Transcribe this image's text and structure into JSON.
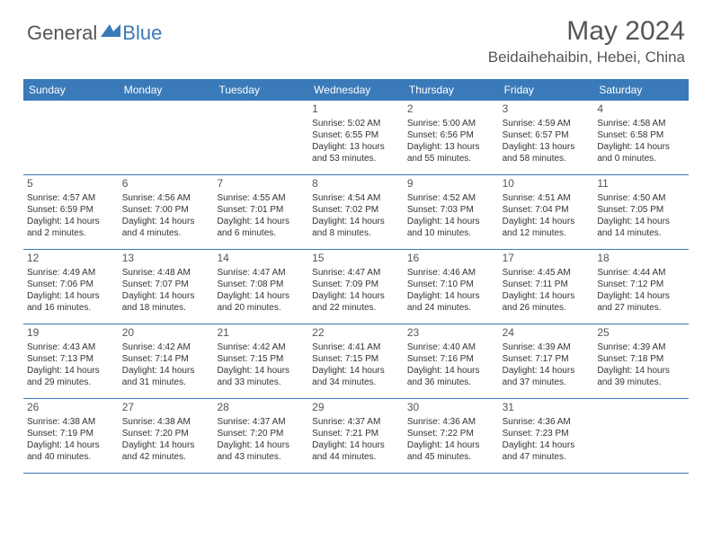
{
  "logo": {
    "text1": "General",
    "text2": "Blue"
  },
  "title": "May 2024",
  "location": "Beidaihehaibin, Hebei, China",
  "colors": {
    "header_bg": "#3a7ab8",
    "header_text": "#ffffff",
    "text": "#333333",
    "title_color": "#555555"
  },
  "day_names": [
    "Sunday",
    "Monday",
    "Tuesday",
    "Wednesday",
    "Thursday",
    "Friday",
    "Saturday"
  ],
  "weeks": [
    [
      null,
      null,
      null,
      {
        "n": "1",
        "sr": "Sunrise: 5:02 AM",
        "ss": "Sunset: 6:55 PM",
        "dl1": "Daylight: 13 hours",
        "dl2": "and 53 minutes."
      },
      {
        "n": "2",
        "sr": "Sunrise: 5:00 AM",
        "ss": "Sunset: 6:56 PM",
        "dl1": "Daylight: 13 hours",
        "dl2": "and 55 minutes."
      },
      {
        "n": "3",
        "sr": "Sunrise: 4:59 AM",
        "ss": "Sunset: 6:57 PM",
        "dl1": "Daylight: 13 hours",
        "dl2": "and 58 minutes."
      },
      {
        "n": "4",
        "sr": "Sunrise: 4:58 AM",
        "ss": "Sunset: 6:58 PM",
        "dl1": "Daylight: 14 hours",
        "dl2": "and 0 minutes."
      }
    ],
    [
      {
        "n": "5",
        "sr": "Sunrise: 4:57 AM",
        "ss": "Sunset: 6:59 PM",
        "dl1": "Daylight: 14 hours",
        "dl2": "and 2 minutes."
      },
      {
        "n": "6",
        "sr": "Sunrise: 4:56 AM",
        "ss": "Sunset: 7:00 PM",
        "dl1": "Daylight: 14 hours",
        "dl2": "and 4 minutes."
      },
      {
        "n": "7",
        "sr": "Sunrise: 4:55 AM",
        "ss": "Sunset: 7:01 PM",
        "dl1": "Daylight: 14 hours",
        "dl2": "and 6 minutes."
      },
      {
        "n": "8",
        "sr": "Sunrise: 4:54 AM",
        "ss": "Sunset: 7:02 PM",
        "dl1": "Daylight: 14 hours",
        "dl2": "and 8 minutes."
      },
      {
        "n": "9",
        "sr": "Sunrise: 4:52 AM",
        "ss": "Sunset: 7:03 PM",
        "dl1": "Daylight: 14 hours",
        "dl2": "and 10 minutes."
      },
      {
        "n": "10",
        "sr": "Sunrise: 4:51 AM",
        "ss": "Sunset: 7:04 PM",
        "dl1": "Daylight: 14 hours",
        "dl2": "and 12 minutes."
      },
      {
        "n": "11",
        "sr": "Sunrise: 4:50 AM",
        "ss": "Sunset: 7:05 PM",
        "dl1": "Daylight: 14 hours",
        "dl2": "and 14 minutes."
      }
    ],
    [
      {
        "n": "12",
        "sr": "Sunrise: 4:49 AM",
        "ss": "Sunset: 7:06 PM",
        "dl1": "Daylight: 14 hours",
        "dl2": "and 16 minutes."
      },
      {
        "n": "13",
        "sr": "Sunrise: 4:48 AM",
        "ss": "Sunset: 7:07 PM",
        "dl1": "Daylight: 14 hours",
        "dl2": "and 18 minutes."
      },
      {
        "n": "14",
        "sr": "Sunrise: 4:47 AM",
        "ss": "Sunset: 7:08 PM",
        "dl1": "Daylight: 14 hours",
        "dl2": "and 20 minutes."
      },
      {
        "n": "15",
        "sr": "Sunrise: 4:47 AM",
        "ss": "Sunset: 7:09 PM",
        "dl1": "Daylight: 14 hours",
        "dl2": "and 22 minutes."
      },
      {
        "n": "16",
        "sr": "Sunrise: 4:46 AM",
        "ss": "Sunset: 7:10 PM",
        "dl1": "Daylight: 14 hours",
        "dl2": "and 24 minutes."
      },
      {
        "n": "17",
        "sr": "Sunrise: 4:45 AM",
        "ss": "Sunset: 7:11 PM",
        "dl1": "Daylight: 14 hours",
        "dl2": "and 26 minutes."
      },
      {
        "n": "18",
        "sr": "Sunrise: 4:44 AM",
        "ss": "Sunset: 7:12 PM",
        "dl1": "Daylight: 14 hours",
        "dl2": "and 27 minutes."
      }
    ],
    [
      {
        "n": "19",
        "sr": "Sunrise: 4:43 AM",
        "ss": "Sunset: 7:13 PM",
        "dl1": "Daylight: 14 hours",
        "dl2": "and 29 minutes."
      },
      {
        "n": "20",
        "sr": "Sunrise: 4:42 AM",
        "ss": "Sunset: 7:14 PM",
        "dl1": "Daylight: 14 hours",
        "dl2": "and 31 minutes."
      },
      {
        "n": "21",
        "sr": "Sunrise: 4:42 AM",
        "ss": "Sunset: 7:15 PM",
        "dl1": "Daylight: 14 hours",
        "dl2": "and 33 minutes."
      },
      {
        "n": "22",
        "sr": "Sunrise: 4:41 AM",
        "ss": "Sunset: 7:15 PM",
        "dl1": "Daylight: 14 hours",
        "dl2": "and 34 minutes."
      },
      {
        "n": "23",
        "sr": "Sunrise: 4:40 AM",
        "ss": "Sunset: 7:16 PM",
        "dl1": "Daylight: 14 hours",
        "dl2": "and 36 minutes."
      },
      {
        "n": "24",
        "sr": "Sunrise: 4:39 AM",
        "ss": "Sunset: 7:17 PM",
        "dl1": "Daylight: 14 hours",
        "dl2": "and 37 minutes."
      },
      {
        "n": "25",
        "sr": "Sunrise: 4:39 AM",
        "ss": "Sunset: 7:18 PM",
        "dl1": "Daylight: 14 hours",
        "dl2": "and 39 minutes."
      }
    ],
    [
      {
        "n": "26",
        "sr": "Sunrise: 4:38 AM",
        "ss": "Sunset: 7:19 PM",
        "dl1": "Daylight: 14 hours",
        "dl2": "and 40 minutes."
      },
      {
        "n": "27",
        "sr": "Sunrise: 4:38 AM",
        "ss": "Sunset: 7:20 PM",
        "dl1": "Daylight: 14 hours",
        "dl2": "and 42 minutes."
      },
      {
        "n": "28",
        "sr": "Sunrise: 4:37 AM",
        "ss": "Sunset: 7:20 PM",
        "dl1": "Daylight: 14 hours",
        "dl2": "and 43 minutes."
      },
      {
        "n": "29",
        "sr": "Sunrise: 4:37 AM",
        "ss": "Sunset: 7:21 PM",
        "dl1": "Daylight: 14 hours",
        "dl2": "and 44 minutes."
      },
      {
        "n": "30",
        "sr": "Sunrise: 4:36 AM",
        "ss": "Sunset: 7:22 PM",
        "dl1": "Daylight: 14 hours",
        "dl2": "and 45 minutes."
      },
      {
        "n": "31",
        "sr": "Sunrise: 4:36 AM",
        "ss": "Sunset: 7:23 PM",
        "dl1": "Daylight: 14 hours",
        "dl2": "and 47 minutes."
      },
      null
    ]
  ]
}
